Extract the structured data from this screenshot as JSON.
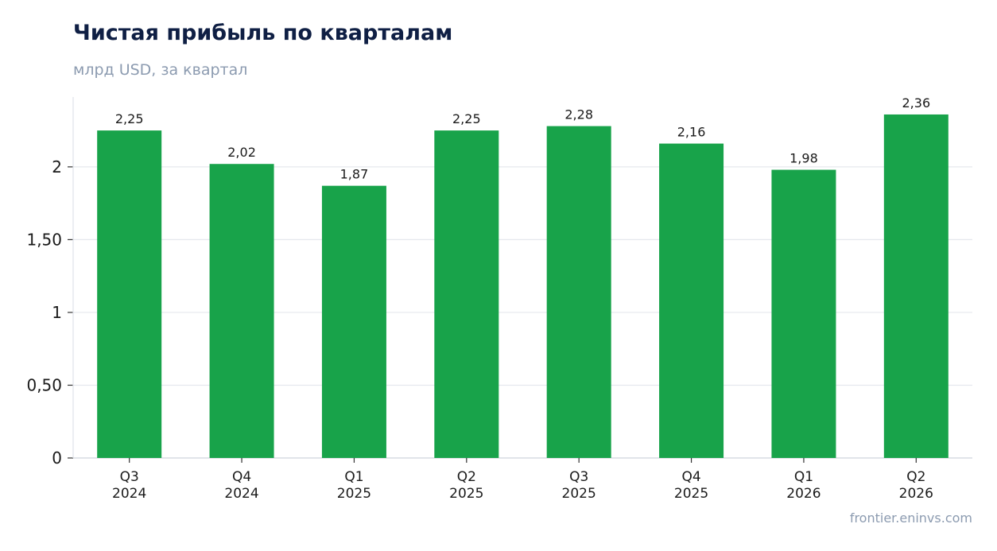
{
  "chart_data": {
    "type": "bar",
    "title": "Чистая прибыль по кварталам",
    "subtitle": "млрд USD, за квартал",
    "source": "frontier.eninvs.com",
    "categories": [
      [
        "Q3",
        "2024"
      ],
      [
        "Q4",
        "2024"
      ],
      [
        "Q1",
        "2025"
      ],
      [
        "Q2",
        "2025"
      ],
      [
        "Q3",
        "2025"
      ],
      [
        "Q4",
        "2025"
      ],
      [
        "Q1",
        "2026"
      ],
      [
        "Q2",
        "2026"
      ]
    ],
    "values": [
      2.25,
      2.02,
      1.87,
      2.25,
      2.28,
      2.16,
      1.98,
      2.36
    ],
    "value_labels": [
      "2,25",
      "2,02",
      "1,87",
      "2,25",
      "2,28",
      "2,16",
      "1,98",
      "2,36"
    ],
    "y_ticks": [
      0,
      0.5,
      1,
      1.5,
      2
    ],
    "y_tick_labels": [
      "0",
      "0,50",
      "1",
      "1,50",
      "2"
    ],
    "ylim": [
      0,
      2.48
    ],
    "grid": true,
    "bar_color": "#18a34a",
    "grid_color": "#e5e8ee"
  }
}
